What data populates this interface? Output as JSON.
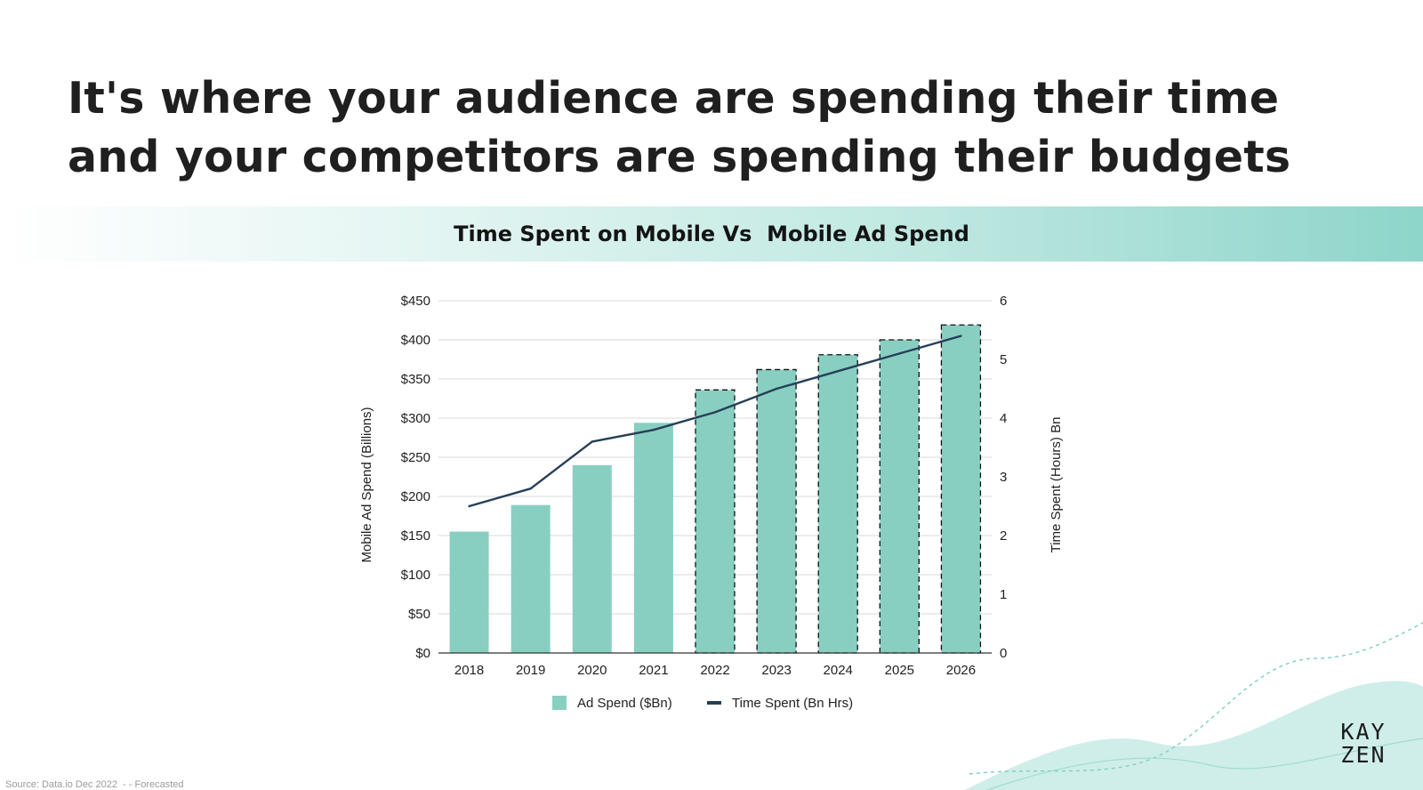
{
  "headline": {
    "line1": "It's where your audience are spending their time",
    "line2": "and your competitors are spending their budgets"
  },
  "banner": {
    "title": "Time Spent on Mobile Vs  Mobile Ad Spend"
  },
  "source": "Source: Data.io Dec 2022  - - Forecasted",
  "logo": {
    "line1": "KAY",
    "line2": "ZEN"
  },
  "colors": {
    "bar": "#88cfc1",
    "line": "#263f57",
    "accent": "#8ed5ca"
  },
  "chart_data": {
    "type": "bar",
    "categories": [
      "2018",
      "2019",
      "2020",
      "2021",
      "2022",
      "2023",
      "2024",
      "2025",
      "2026"
    ],
    "series": [
      {
        "name": "Ad Spend ($Bn)",
        "type": "bar",
        "axis": "left",
        "values": [
          155,
          189,
          240,
          294,
          336,
          362,
          381,
          400,
          419
        ],
        "forecast": [
          false,
          false,
          false,
          false,
          true,
          true,
          true,
          true,
          true
        ]
      },
      {
        "name": "Time Spent (Bn Hrs)",
        "type": "line",
        "axis": "right",
        "values": [
          2.5,
          2.8,
          3.6,
          3.8,
          4.1,
          4.5,
          4.8,
          5.1,
          5.4
        ]
      }
    ],
    "ylabel": "Mobile Ad Spend (Billions)",
    "y2label": "Time Spent (Hours) Bn",
    "ylim": [
      0,
      450
    ],
    "y2lim": [
      0,
      6
    ],
    "yticks": [
      "$0",
      "$50",
      "$100",
      "$150",
      "$200",
      "$250",
      "$300",
      "$350",
      "$400",
      "$450"
    ],
    "y2ticks": [
      "0",
      "1",
      "2",
      "3",
      "4",
      "5",
      "6"
    ],
    "grid": true,
    "legend": "bottom"
  }
}
